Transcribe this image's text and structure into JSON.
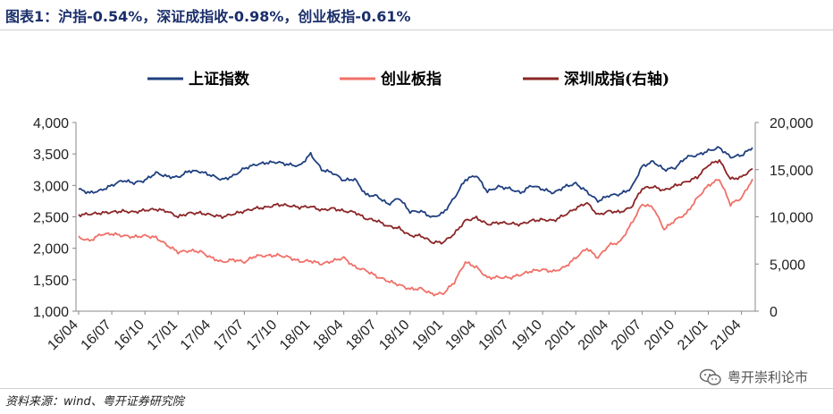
{
  "title": "图表1：沪指-0.54%，深证成指收-0.98%，创业板指-0.61%",
  "source": "资料来源：wind、粤开证券研究院",
  "watermark": {
    "text": "粤开崇利论市",
    "icon": "wechat-icon"
  },
  "chart_data": {
    "type": "line",
    "title": "图表1：沪指-0.54%，深证成指收-0.98%，创业板指-0.61%",
    "legend_position": "top",
    "grid": false,
    "x_tick_labels": [
      "16/04",
      "16/07",
      "16/10",
      "17/01",
      "17/04",
      "17/07",
      "17/10",
      "18/01",
      "18/04",
      "18/07",
      "18/10",
      "19/01",
      "19/04",
      "19/07",
      "19/10",
      "20/01",
      "20/04",
      "20/07",
      "20/10",
      "21/01",
      "21/04"
    ],
    "x_ticks_index": [
      0,
      3,
      6,
      9,
      12,
      15,
      18,
      21,
      24,
      27,
      30,
      33,
      36,
      39,
      42,
      45,
      48,
      51,
      54,
      57,
      60
    ],
    "y_left": {
      "ticks": [
        "1,000",
        "1,500",
        "2,000",
        "2,500",
        "3,000",
        "3,500",
        "4,000"
      ],
      "range": [
        1000,
        4000
      ]
    },
    "y_right": {
      "ticks": [
        "0",
        "5,000",
        "10,000",
        "15,000",
        "20,000"
      ],
      "range": [
        0,
        20000
      ]
    },
    "x": [
      "16/04",
      "16/05",
      "16/06",
      "16/07",
      "16/08",
      "16/09",
      "16/10",
      "16/11",
      "16/12",
      "17/01",
      "17/02",
      "17/03",
      "17/04",
      "17/05",
      "17/06",
      "17/07",
      "17/08",
      "17/09",
      "17/10",
      "17/11",
      "17/12",
      "18/01",
      "18/02",
      "18/03",
      "18/04",
      "18/05",
      "18/06",
      "18/07",
      "18/08",
      "18/09",
      "18/10",
      "18/11",
      "18/12",
      "19/01",
      "19/02",
      "19/03",
      "19/04",
      "19/05",
      "19/06",
      "19/07",
      "19/08",
      "19/09",
      "19/10",
      "19/11",
      "19/12",
      "20/01",
      "20/02",
      "20/03",
      "20/04",
      "20/05",
      "20/06",
      "20/07",
      "20/08",
      "20/09",
      "20/10",
      "20/11",
      "20/12",
      "21/01",
      "21/02",
      "21/03",
      "21/04",
      "21/05"
    ],
    "series": [
      {
        "name": "上证指数",
        "color": "#1f3f7f",
        "axis": "left",
        "values": [
          2940,
          2880,
          2920,
          3000,
          3080,
          3040,
          3080,
          3200,
          3140,
          3130,
          3230,
          3220,
          3160,
          3090,
          3150,
          3270,
          3330,
          3360,
          3370,
          3330,
          3310,
          3500,
          3250,
          3200,
          3080,
          3100,
          2850,
          2830,
          2700,
          2800,
          2580,
          2590,
          2490,
          2560,
          2800,
          3090,
          3160,
          2900,
          2980,
          2950,
          2880,
          3000,
          2940,
          2880,
          2980,
          3030,
          2900,
          2750,
          2840,
          2860,
          2950,
          3300,
          3380,
          3250,
          3280,
          3450,
          3480,
          3550,
          3600,
          3450,
          3480,
          3600
        ]
      },
      {
        "name": "创业板指",
        "color": "#f07068",
        "axis": "left",
        "values": [
          2170,
          2120,
          2220,
          2230,
          2200,
          2180,
          2200,
          2170,
          2050,
          1940,
          1960,
          1950,
          1850,
          1780,
          1820,
          1780,
          1880,
          1880,
          1890,
          1860,
          1790,
          1800,
          1750,
          1800,
          1850,
          1700,
          1650,
          1550,
          1480,
          1420,
          1350,
          1360,
          1270,
          1280,
          1460,
          1780,
          1700,
          1530,
          1540,
          1530,
          1580,
          1640,
          1660,
          1630,
          1700,
          1850,
          2000,
          1850,
          2050,
          2100,
          2380,
          2700,
          2650,
          2300,
          2450,
          2550,
          2800,
          3000,
          3100,
          2700,
          2800,
          3100
        ]
      },
      {
        "name": "深圳成指(右轴)",
        "color": "#8b2527",
        "axis": "right",
        "values": [
          10200,
          10300,
          10400,
          10500,
          10600,
          10500,
          10700,
          10800,
          10600,
          10000,
          10400,
          10400,
          10200,
          10000,
          10300,
          10600,
          10900,
          11000,
          11300,
          11200,
          11000,
          11100,
          10700,
          10900,
          10600,
          10500,
          9800,
          9600,
          9000,
          8800,
          8000,
          8000,
          7300,
          7300,
          8200,
          9600,
          9900,
          9200,
          9400,
          9300,
          9200,
          9600,
          9700,
          9600,
          10200,
          10900,
          11500,
          10200,
          10600,
          10500,
          11000,
          13000,
          13200,
          12800,
          13300,
          13700,
          14200,
          15500,
          16000,
          14000,
          14200,
          15100
        ]
      }
    ]
  }
}
